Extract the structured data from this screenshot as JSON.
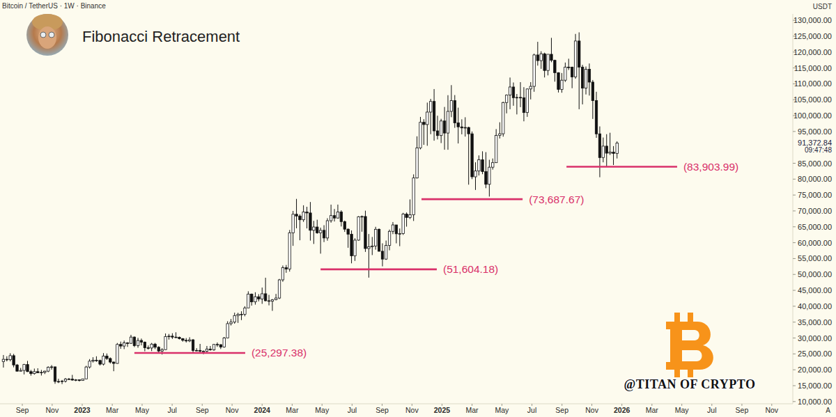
{
  "chart_data": {
    "type": "candlestick",
    "title": "Fibonacci Retracement",
    "subtitle": "Bitcoin / TetherUS · 1W · Binance",
    "y_axis_label": "USDT",
    "corner_button": "A",
    "watermark": "@TITAN OF CRYPTO",
    "grid": false,
    "xlim": [
      2022.543,
      2026.95
    ],
    "ylim": [
      9300,
      132000
    ],
    "xticks": [
      {
        "value": 2022.667,
        "label": "Sep"
      },
      {
        "value": 2022.833,
        "label": "Nov"
      },
      2023,
      {
        "value": 2023.167,
        "label": "Mar"
      },
      {
        "value": 2023.333,
        "label": "May"
      },
      {
        "value": 2023.5,
        "label": "Jul"
      },
      {
        "value": 2023.667,
        "label": "Sep"
      },
      {
        "value": 2023.833,
        "label": "Nov"
      },
      2024,
      {
        "value": 2024.167,
        "label": "Mar"
      },
      {
        "value": 2024.333,
        "label": "May"
      },
      {
        "value": 2024.5,
        "label": "Jul"
      },
      {
        "value": 2024.667,
        "label": "Sep"
      },
      {
        "value": 2024.833,
        "label": "Nov"
      },
      2025,
      {
        "value": 2025.167,
        "label": "Mar"
      },
      {
        "value": 2025.333,
        "label": "May"
      },
      {
        "value": 2025.5,
        "label": "Jul"
      },
      {
        "value": 2025.667,
        "label": "Sep"
      },
      {
        "value": 2025.833,
        "label": "Nov"
      },
      2026,
      {
        "value": 2026.167,
        "label": "Mar"
      },
      {
        "value": 2026.333,
        "label": "May"
      },
      {
        "value": 2026.5,
        "label": "Jul"
      },
      {
        "value": 2026.667,
        "label": "Sep"
      },
      {
        "value": 2026.833,
        "label": "Nov"
      }
    ],
    "yticks": [
      {
        "value": 10000,
        "label": "10,000.00"
      },
      {
        "value": 15000,
        "label": "15,000.00"
      },
      {
        "value": 20000,
        "label": "20,000.00"
      },
      {
        "value": 25000,
        "label": "25,000.00"
      },
      {
        "value": 30000,
        "label": "30,000.00"
      },
      {
        "value": 35000,
        "label": "35,000.00"
      },
      {
        "value": 40000,
        "label": "40,000.00"
      },
      {
        "value": 45000,
        "label": "45,000.00"
      },
      {
        "value": 50000,
        "label": "50,000.00"
      },
      {
        "value": 55000,
        "label": "55,000.00"
      },
      {
        "value": 60000,
        "label": "60,000.00"
      },
      {
        "value": 65000,
        "label": "65,000.00"
      },
      {
        "value": 70000,
        "label": "70,000.00"
      },
      {
        "value": 75000,
        "label": "75,000.00"
      },
      {
        "value": 80000,
        "label": "80,000.00"
      },
      {
        "value": 85000,
        "label": "85,000.00"
      },
      {
        "value": 95000,
        "label": "95,000.00"
      },
      {
        "value": 100000,
        "label": "100,000.00"
      },
      {
        "value": 105000,
        "label": "105,000.00"
      },
      {
        "value": 110000,
        "label": "110,000.00"
      },
      {
        "value": 115000,
        "label": "115,000.00"
      },
      {
        "value": 120000,
        "label": "120,000.00"
      },
      {
        "value": 125000,
        "label": "125,000.00"
      },
      {
        "value": 130000,
        "label": "130,000.00"
      }
    ],
    "last_price": {
      "value": 91372.84,
      "label": "91,372.84",
      "countdown": "09:47:48"
    },
    "annotations": [
      {
        "value": 25297.38,
        "label": "(25,297.38)",
        "x0": 2023.29,
        "x1": 2023.906
      },
      {
        "value": 51604.18,
        "label": "(51,604.18)",
        "x0": 2024.325,
        "x1": 2024.971
      },
      {
        "value": 73687.67,
        "label": "(73,687.67)",
        "x0": 2024.886,
        "x1": 2025.448
      },
      {
        "value": 83903.99,
        "label": "(83,903.99)",
        "x0": 2025.692,
        "x1": 2026.307
      }
    ],
    "x": [
      2022.562,
      2022.581,
      2022.6,
      2022.619,
      2022.638,
      2022.658,
      2022.677,
      2022.696,
      2022.715,
      2022.734,
      2022.753,
      2022.773,
      2022.792,
      2022.811,
      2022.83,
      2022.849,
      2022.868,
      2022.888,
      2022.907,
      2022.926,
      2022.945,
      2022.964,
      2022.984,
      2023.003,
      2023.022,
      2023.041,
      2023.06,
      2023.079,
      2023.099,
      2023.118,
      2023.137,
      2023.156,
      2023.175,
      2023.195,
      2023.214,
      2023.233,
      2023.252,
      2023.271,
      2023.29,
      2023.31,
      2023.329,
      2023.348,
      2023.367,
      2023.386,
      2023.405,
      2023.425,
      2023.444,
      2023.463,
      2023.482,
      2023.501,
      2023.521,
      2023.54,
      2023.559,
      2023.578,
      2023.597,
      2023.616,
      2023.636,
      2023.655,
      2023.674,
      2023.693,
      2023.712,
      2023.732,
      2023.751,
      2023.77,
      2023.789,
      2023.808,
      2023.827,
      2023.847,
      2023.866,
      2023.885,
      2023.904,
      2023.923,
      2023.942,
      2023.962,
      2023.981,
      2024,
      2024.019,
      2024.038,
      2024.057,
      2024.077,
      2024.096,
      2024.115,
      2024.134,
      2024.153,
      2024.172,
      2024.191,
      2024.21,
      2024.23,
      2024.249,
      2024.268,
      2024.287,
      2024.306,
      2024.325,
      2024.344,
      2024.363,
      2024.383,
      2024.402,
      2024.421,
      2024.44,
      2024.459,
      2024.478,
      2024.497,
      2024.516,
      2024.536,
      2024.555,
      2024.574,
      2024.593,
      2024.612,
      2024.631,
      2024.65,
      2024.669,
      2024.689,
      2024.708,
      2024.727,
      2024.746,
      2024.765,
      2024.784,
      2024.803,
      2024.822,
      2024.842,
      2024.861,
      2024.88,
      2024.899,
      2024.918,
      2024.937,
      2024.956,
      2024.975,
      2024.995,
      2025.014,
      2025.033,
      2025.052,
      2025.071,
      2025.09,
      2025.11,
      2025.129,
      2025.148,
      2025.167,
      2025.186,
      2025.205,
      2025.225,
      2025.244,
      2025.263,
      2025.282,
      2025.301,
      2025.321,
      2025.34,
      2025.359,
      2025.378,
      2025.397,
      2025.416,
      2025.436,
      2025.455,
      2025.474,
      2025.493,
      2025.512,
      2025.532,
      2025.551,
      2025.57,
      2025.589,
      2025.608,
      2025.627,
      2025.647,
      2025.666,
      2025.685,
      2025.704,
      2025.723,
      2025.742,
      2025.762,
      2025.781,
      2025.8,
      2025.819,
      2025.838,
      2025.858,
      2025.877,
      2025.896,
      2025.915,
      2025.934,
      2025.953,
      2025.973
    ],
    "open": [
      22600,
      23300,
      23180,
      24440,
      21520,
      19550,
      19800,
      21650,
      19420,
      18800,
      19420,
      19070,
      19200,
      19570,
      20810,
      20920,
      16330,
      16280,
      16450,
      17100,
      17100,
      16760,
      16840,
      16610,
      17130,
      20880,
      22710,
      23020,
      22930,
      21780,
      24330,
      23550,
      22430,
      22000,
      27990,
      27470,
      28450,
      28320,
      30300,
      27590,
      29230,
      28700,
      26920,
      26850,
      28080,
      27100,
      25900,
      26340,
      30470,
      30590,
      30290,
      30230,
      29790,
      29280,
      29070,
      29420,
      26090,
      26100,
      25830,
      25840,
      26530,
      26250,
      27980,
      27920,
      27150,
      29990,
      34520,
      35010,
      37060,
      37450,
      37460,
      39470,
      43790,
      41370,
      42990,
      42280,
      43930,
      41730,
      41580,
      42030,
      42580,
      48300,
      52140,
      51730,
      63110,
      68950,
      68390,
      67210,
      69650,
      69360,
      63900,
      64940,
      63120,
      63890,
      61480,
      66920,
      68530,
      67760,
      69650,
      66640,
      64250,
      62680,
      55850,
      60800,
      68160,
      68250,
      58160,
      58720,
      58970,
      64220,
      57300,
      54840,
      59130,
      63580,
      65600,
      62800,
      62850,
      69000,
      67940,
      68780,
      80370,
      89850,
      97900,
      97180,
      101110,
      104460,
      95190,
      93720,
      98310,
      94510,
      101330,
      104710,
      97700,
      96460,
      96120,
      96260,
      94270,
      80730,
      82580,
      86080,
      82390,
      78370,
      83760,
      85180,
      93750,
      94280,
      104120,
      106450,
      109000,
      105640,
      105730,
      105590,
      100960,
      108380,
      109200,
      119090,
      117300,
      119450,
      114200,
      119300,
      117400,
      113490,
      108250,
      111140,
      115270,
      115230,
      112160,
      123480,
      115270,
      108640,
      114570,
      110540,
      104720,
      94260,
      86800,
      90390,
      88170,
      88490,
      88100
    ],
    "high": [
      24650,
      24250,
      25200,
      25000,
      21820,
      20580,
      21860,
      22800,
      19960,
      20380,
      20480,
      19950,
      19700,
      21080,
      21480,
      21000,
      17190,
      16800,
      17420,
      17420,
      18390,
      17060,
      16960,
      17180,
      21250,
      23370,
      23950,
      24250,
      23180,
      25250,
      25130,
      23890,
      22600,
      28430,
      28870,
      29190,
      28700,
      31000,
      30490,
      30040,
      29830,
      28900,
      27650,
      28450,
      28450,
      27400,
      26800,
      31430,
      31280,
      31500,
      31800,
      30450,
      29990,
      29990,
      30240,
      29690,
      26800,
      28140,
      26100,
      27490,
      27480,
      28090,
      28600,
      28000,
      30340,
      35280,
      35980,
      37970,
      37930,
      38420,
      40000,
      44700,
      44000,
      44400,
      43800,
      45880,
      48970,
      43580,
      42250,
      43880,
      48590,
      52820,
      52980,
      64000,
      69990,
      73780,
      68920,
      71770,
      71300,
      72800,
      66870,
      67230,
      64740,
      65500,
      67700,
      71980,
      70600,
      71990,
      70200,
      66950,
      64500,
      63860,
      61400,
      68370,
      68550,
      70080,
      62730,
      61800,
      65000,
      64480,
      59800,
      60670,
      64130,
      66500,
      65600,
      64470,
      69400,
      69520,
      73620,
      81500,
      93480,
      99590,
      98870,
      104090,
      105250,
      108350,
      99960,
      98980,
      102720,
      106420,
      109590,
      106460,
      102500,
      98830,
      99480,
      96500,
      95000,
      85300,
      87470,
      88760,
      88500,
      86100,
      86500,
      95750,
      97900,
      104350,
      106650,
      111980,
      110420,
      106800,
      110530,
      108950,
      108520,
      110530,
      119500,
      123220,
      120250,
      119800,
      119310,
      124470,
      117600,
      113650,
      113400,
      116700,
      117900,
      115400,
      125700,
      126200,
      115970,
      115450,
      116400,
      111200,
      107500,
      96600,
      93100,
      94150,
      94600,
      90400,
      91900
    ],
    "low": [
      20700,
      22650,
      22650,
      20770,
      19520,
      19500,
      18540,
      19320,
      18150,
      18470,
      19000,
      18190,
      18650,
      19250,
      20040,
      15590,
      15800,
      15480,
      15990,
      16870,
      16550,
      16400,
      16330,
      16530,
      17120,
      20400,
      22290,
      22500,
      21350,
      21370,
      23100,
      21970,
      19550,
      21920,
      26600,
      26510,
      27200,
      28170,
      27130,
      26940,
      27680,
      25810,
      26350,
      25880,
      26500,
      25350,
      24800,
      26250,
      29500,
      29700,
      29950,
      29550,
      28850,
      28580,
      28700,
      25170,
      25800,
      25330,
      24900,
      25160,
      26010,
      26000,
      27220,
      26530,
      26960,
      29880,
      33940,
      34500,
      34750,
      35630,
      36840,
      39460,
      40200,
      40500,
      41520,
      40750,
      41500,
      40280,
      38550,
      41880,
      42260,
      47700,
      50520,
      50900,
      59000,
      64530,
      60760,
      66550,
      64490,
      60660,
      59600,
      62800,
      56550,
      60190,
      60630,
      66300,
      66670,
      67600,
      65100,
      63400,
      58400,
      53500,
      54260,
      60630,
      63450,
      57100,
      49000,
      56100,
      57800,
      57200,
      52550,
      54600,
      57600,
      62700,
      59800,
      58900,
      62450,
      65050,
      67450,
      66830,
      80200,
      89380,
      90790,
      90500,
      94150,
      92100,
      92500,
      91350,
      89260,
      89250,
      99500,
      96150,
      91230,
      94100,
      93390,
      78260,
      80000,
      76600,
      81150,
      81560,
      77150,
      74510,
      83000,
      85140,
      92800,
      93370,
      100700,
      102000,
      103100,
      100370,
      102660,
      98200,
      99600,
      105100,
      107500,
      115730,
      114720,
      112000,
      112650,
      116800,
      110680,
      107270,
      107200,
      110600,
      114350,
      108620,
      111600,
      102000,
      103530,
      106650,
      106300,
      98950,
      93000,
      80600,
      85300,
      83800,
      87600,
      84450,
      86500
    ],
    "close": [
      23300,
      23180,
      24440,
      21520,
      19550,
      19800,
      21650,
      19420,
      18800,
      19420,
      19070,
      19200,
      19570,
      20810,
      20920,
      16330,
      16280,
      16450,
      17100,
      17100,
      16760,
      16840,
      16610,
      17130,
      20880,
      22710,
      23020,
      22930,
      21780,
      24330,
      23550,
      22430,
      22000,
      27990,
      27470,
      28450,
      28320,
      30300,
      27590,
      29230,
      28700,
      26920,
      26850,
      28080,
      27100,
      25900,
      26340,
      30470,
      30590,
      30290,
      30230,
      29790,
      29280,
      29070,
      29420,
      26090,
      26100,
      25830,
      25840,
      26530,
      26250,
      27980,
      27920,
      27150,
      29990,
      34520,
      35010,
      37060,
      37450,
      37460,
      39470,
      43790,
      41370,
      42990,
      42280,
      43930,
      41730,
      41580,
      42030,
      42580,
      48300,
      52140,
      51730,
      63110,
      68950,
      68390,
      67210,
      69650,
      69360,
      63900,
      64940,
      63120,
      63890,
      61480,
      66920,
      68530,
      67760,
      69650,
      66640,
      64250,
      62680,
      55850,
      60800,
      68160,
      68250,
      58160,
      58720,
      58970,
      64220,
      57300,
      54840,
      59130,
      63580,
      65600,
      62800,
      62850,
      69000,
      67940,
      68780,
      80370,
      89850,
      97900,
      97180,
      101110,
      104460,
      95190,
      93720,
      98310,
      94510,
      101330,
      104710,
      97700,
      96460,
      96120,
      96260,
      94270,
      80730,
      82580,
      86080,
      82390,
      78370,
      83760,
      85180,
      93750,
      94280,
      104120,
      106450,
      109000,
      105640,
      105730,
      105590,
      100960,
      108380,
      109200,
      119090,
      117300,
      119450,
      114200,
      119300,
      117400,
      113490,
      108250,
      111140,
      115270,
      115230,
      112160,
      123480,
      115270,
      108640,
      114570,
      110540,
      104720,
      94260,
      86800,
      90390,
      88170,
      88490,
      88100,
      91372.84
    ]
  }
}
